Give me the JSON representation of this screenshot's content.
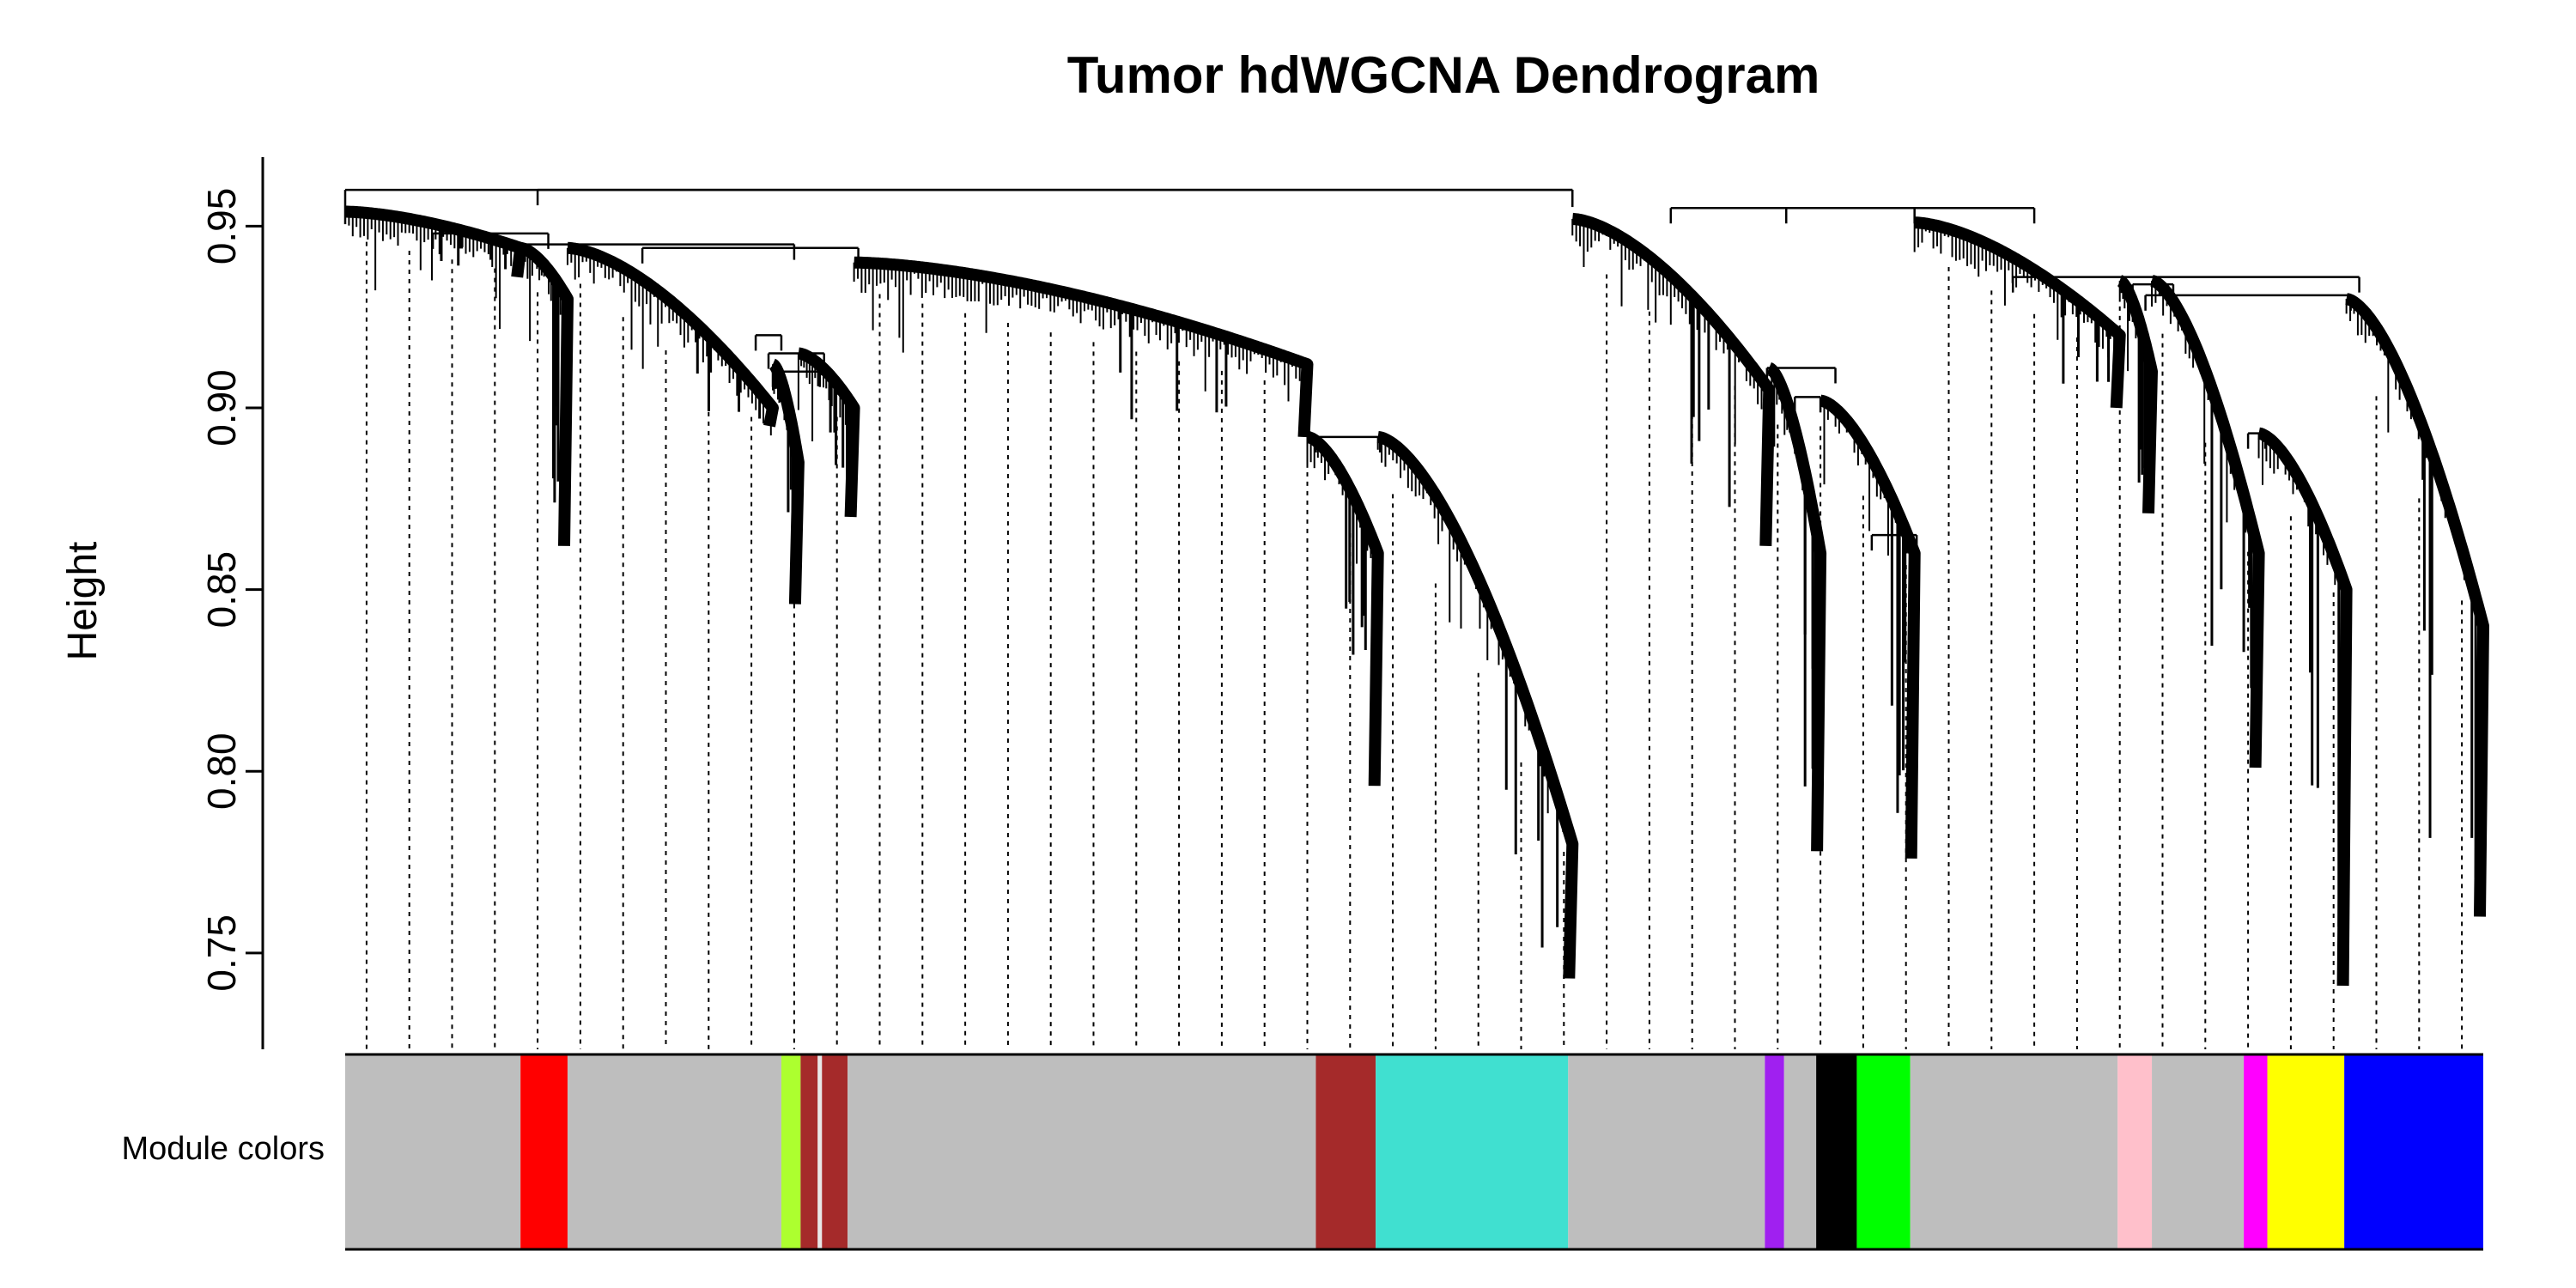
{
  "chart_data": {
    "type": "dendrogram",
    "title": "Tumor hdWGCNA Dendrogram",
    "ylabel": "Height",
    "ylim": [
      0.7235,
      0.969
    ],
    "y_ticks": [
      0.75,
      0.8,
      0.85,
      0.9,
      0.95
    ],
    "y_tick_labels": [
      "0.75",
      "0.80",
      "0.85",
      "0.90",
      "0.95"
    ],
    "root_height": 0.96,
    "color_band_label": "Module colors",
    "color_band": {
      "type": "categorical",
      "x_range": [
        0,
        1
      ],
      "segments": [
        {
          "from": 0.0,
          "to": 0.082,
          "color": "#BEBEBE"
        },
        {
          "from": 0.082,
          "to": 0.104,
          "color": "#FF0000"
        },
        {
          "from": 0.104,
          "to": 0.204,
          "color": "#BEBEBE"
        },
        {
          "from": 0.204,
          "to": 0.213,
          "color": "#ADFF2F"
        },
        {
          "from": 0.213,
          "to": 0.221,
          "color": "#A52A2A"
        },
        {
          "from": 0.221,
          "to": 0.223,
          "color": "#E8E8E8"
        },
        {
          "from": 0.223,
          "to": 0.235,
          "color": "#A52A2A"
        },
        {
          "from": 0.235,
          "to": 0.454,
          "color": "#BEBEBE"
        },
        {
          "from": 0.454,
          "to": 0.482,
          "color": "#A52A2A"
        },
        {
          "from": 0.482,
          "to": 0.572,
          "color": "#40E0D0"
        },
        {
          "from": 0.572,
          "to": 0.664,
          "color": "#BEBEBE"
        },
        {
          "from": 0.664,
          "to": 0.673,
          "color": "#A020F0"
        },
        {
          "from": 0.673,
          "to": 0.688,
          "color": "#BEBEBE"
        },
        {
          "from": 0.688,
          "to": 0.707,
          "color": "#000000"
        },
        {
          "from": 0.707,
          "to": 0.732,
          "color": "#00FF00"
        },
        {
          "from": 0.732,
          "to": 0.829,
          "color": "#BEBEBE"
        },
        {
          "from": 0.829,
          "to": 0.845,
          "color": "#FFC0CB"
        },
        {
          "from": 0.845,
          "to": 0.888,
          "color": "#BEBEBE"
        },
        {
          "from": 0.888,
          "to": 0.899,
          "color": "#FF00FF"
        },
        {
          "from": 0.899,
          "to": 0.935,
          "color": "#FFFF00"
        },
        {
          "from": 0.935,
          "to": 1.0,
          "color": "#0000FF"
        }
      ]
    },
    "clusters": [
      {
        "span": [
          0.0,
          0.082
        ],
        "top": 0.954,
        "bottom": 0.944,
        "tip": 0.936
      },
      {
        "span": [
          0.082,
          0.104
        ],
        "top": 0.944,
        "bottom": 0.93,
        "tip": 0.862
      },
      {
        "span": [
          0.104,
          0.2
        ],
        "top": 0.944,
        "bottom": 0.9,
        "tip": 0.895
      },
      {
        "span": [
          0.2,
          0.212
        ],
        "top": 0.912,
        "bottom": 0.885,
        "tip": 0.846
      },
      {
        "span": [
          0.212,
          0.238
        ],
        "top": 0.915,
        "bottom": 0.9,
        "tip": 0.87
      },
      {
        "span": [
          0.238,
          0.45
        ],
        "top": 0.94,
        "bottom": 0.912,
        "tip": 0.892
      },
      {
        "span": [
          0.45,
          0.483
        ],
        "top": 0.892,
        "bottom": 0.86,
        "tip": 0.796
      },
      {
        "span": [
          0.483,
          0.574
        ],
        "top": 0.892,
        "bottom": 0.78,
        "tip": 0.743
      },
      {
        "span": [
          0.574,
          0.666
        ],
        "top": 0.952,
        "bottom": 0.905,
        "tip": 0.862
      },
      {
        "span": [
          0.666,
          0.69
        ],
        "top": 0.911,
        "bottom": 0.86,
        "tip": 0.778
      },
      {
        "span": [
          0.69,
          0.734
        ],
        "top": 0.902,
        "bottom": 0.86,
        "tip": 0.776
      },
      {
        "span": [
          0.734,
          0.83
        ],
        "top": 0.951,
        "bottom": 0.92,
        "tip": 0.9
      },
      {
        "span": [
          0.83,
          0.845
        ],
        "top": 0.935,
        "bottom": 0.91,
        "tip": 0.871
      },
      {
        "span": [
          0.845,
          0.895
        ],
        "top": 0.935,
        "bottom": 0.86,
        "tip": 0.801
      },
      {
        "span": [
          0.895,
          0.936
        ],
        "top": 0.893,
        "bottom": 0.85,
        "tip": 0.741
      },
      {
        "span": [
          0.936,
          1.0
        ],
        "top": 0.93,
        "bottom": 0.84,
        "tip": 0.76
      }
    ],
    "merges": [
      {
        "left": 0.041,
        "right": 0.095,
        "height": 0.948
      },
      {
        "left": 0.068,
        "right": 0.21,
        "height": 0.945
      },
      {
        "left": 0.192,
        "right": 0.204,
        "height": 0.92
      },
      {
        "left": 0.198,
        "right": 0.224,
        "height": 0.915
      },
      {
        "left": 0.2,
        "right": 0.222,
        "height": 0.91
      },
      {
        "left": 0.139,
        "right": 0.24,
        "height": 0.944
      },
      {
        "left": 0.454,
        "right": 0.484,
        "height": 0.892
      },
      {
        "left": 0.09,
        "right": 0.574,
        "height": 0.96
      },
      {
        "left": 0.678,
        "right": 0.69,
        "height": 0.903
      },
      {
        "left": 0.665,
        "right": 0.697,
        "height": 0.911
      },
      {
        "left": 0.714,
        "right": 0.735,
        "height": 0.865
      },
      {
        "left": 0.62,
        "right": 0.734,
        "height": 0.955
      },
      {
        "left": 0.836,
        "right": 0.855,
        "height": 0.934
      },
      {
        "left": 0.89,
        "right": 0.898,
        "height": 0.893
      },
      {
        "left": 0.842,
        "right": 0.938,
        "height": 0.931
      },
      {
        "left": 0.78,
        "right": 0.942,
        "height": 0.936
      },
      {
        "left": 0.674,
        "right": 0.79,
        "height": 0.955
      }
    ],
    "leaf_guides": {
      "count": 50,
      "grid": "vertical dotted",
      "legend": "none"
    }
  }
}
